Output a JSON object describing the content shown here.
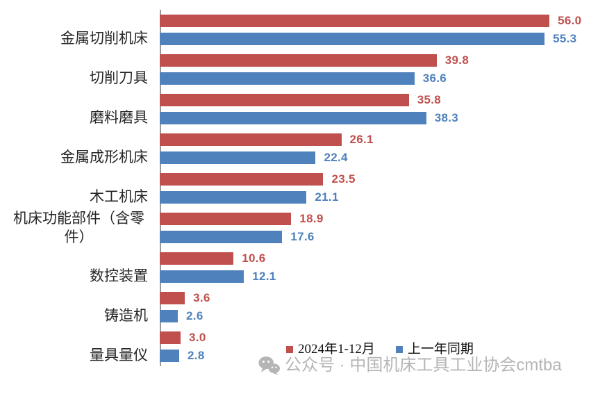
{
  "chart_data": {
    "type": "bar",
    "orientation": "horizontal",
    "title": "",
    "categories": [
      "金属切削机床",
      "切削刀具",
      "磨料磨具",
      "金属成形机床",
      "木工机床",
      "机床功能部件（含零件）",
      "数控装置",
      "铸造机",
      "量具量仪"
    ],
    "series": [
      {
        "name": "2024年1-12月",
        "color": "#C0504D",
        "values": [
          56.0,
          39.8,
          35.8,
          26.1,
          23.5,
          18.9,
          10.6,
          3.6,
          3.0
        ]
      },
      {
        "name": "上一年同期",
        "color": "#4F81BD",
        "values": [
          55.3,
          36.6,
          38.3,
          22.4,
          21.1,
          17.6,
          12.1,
          2.6,
          2.8
        ]
      }
    ],
    "xlim": [
      0,
      64
    ],
    "value_labels": true,
    "value_label_decimals": 1,
    "gridlines": false,
    "legend_position": "bottom-center"
  },
  "legend": {
    "item1_label": "2024年1-12月",
    "item2_label": "上一年同期"
  },
  "watermark": {
    "icon": "wechat-icon",
    "text": "公众号 · 中国机床工具工业协会cmtba",
    "color": "#b5b5b5"
  },
  "colors": {
    "series_current": "#C0504D",
    "series_prior": "#4F81BD",
    "axis_line": "#999999",
    "category_text": "#262626",
    "legend_text": "#111111"
  }
}
